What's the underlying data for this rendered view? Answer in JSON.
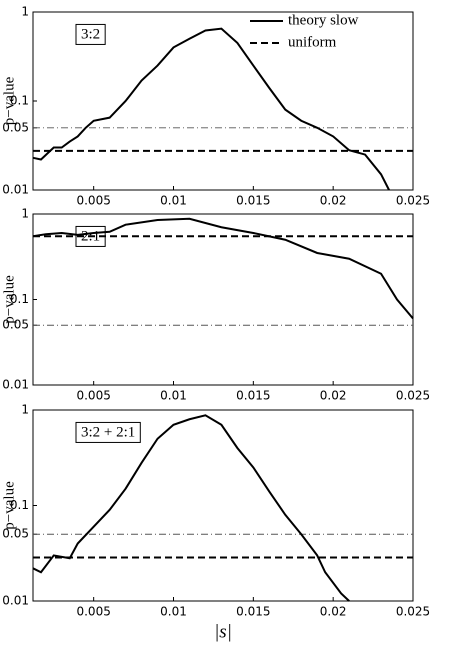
{
  "chart_data": [
    {
      "type": "line",
      "label": "3:2",
      "ylabel": "p−value",
      "ylog": true,
      "xlim": [
        0.0012,
        0.025
      ],
      "ylim": [
        0.01,
        1
      ],
      "xticks": [
        0.005,
        0.01,
        0.015,
        0.02,
        0.025
      ],
      "yticks": [
        0.01,
        0.05,
        0.1,
        1
      ],
      "legend": "upper right",
      "hlines": [
        {
          "value": 0.05,
          "style": "dashdot"
        }
      ],
      "x": [
        0.0012,
        0.0017,
        0.0025,
        0.003,
        0.0035,
        0.004,
        0.0045,
        0.005,
        0.006,
        0.007,
        0.008,
        0.009,
        0.01,
        0.011,
        0.012,
        0.013,
        0.014,
        0.015,
        0.016,
        0.017,
        0.018,
        0.019,
        0.02,
        0.021,
        0.022,
        0.023,
        0.0235
      ],
      "series": [
        {
          "name": "theory slow",
          "style": "solid",
          "color": "#000000",
          "values": [
            0.023,
            0.022,
            0.03,
            0.03,
            0.035,
            0.04,
            0.05,
            0.06,
            0.065,
            0.1,
            0.17,
            0.25,
            0.4,
            0.5,
            0.62,
            0.65,
            0.45,
            0.25,
            0.14,
            0.08,
            0.06,
            0.05,
            0.04,
            0.028,
            0.025,
            0.015,
            0.01
          ]
        },
        {
          "name": "uniform",
          "style": "dashed",
          "color": "#000000",
          "level": 0.0275
        }
      ]
    },
    {
      "type": "line",
      "label": "2:1",
      "ylabel": "p−value",
      "ylog": true,
      "xlim": [
        0.0012,
        0.025
      ],
      "ylim": [
        0.01,
        1
      ],
      "xticks": [
        0.005,
        0.01,
        0.015,
        0.02,
        0.025
      ],
      "yticks": [
        0.01,
        0.05,
        0.1,
        1
      ],
      "hlines": [
        {
          "value": 0.05,
          "style": "dashdot"
        }
      ],
      "x": [
        0.0012,
        0.002,
        0.003,
        0.004,
        0.005,
        0.006,
        0.007,
        0.009,
        0.011,
        0.013,
        0.015,
        0.017,
        0.019,
        0.021,
        0.023,
        0.024,
        0.025
      ],
      "series": [
        {
          "style": "solid",
          "color": "#000000",
          "values": [
            0.55,
            0.58,
            0.6,
            0.57,
            0.6,
            0.62,
            0.75,
            0.85,
            0.88,
            0.7,
            0.6,
            0.5,
            0.35,
            0.3,
            0.2,
            0.1,
            0.06
          ]
        },
        {
          "style": "dashed",
          "color": "#000000",
          "level": 0.55
        }
      ]
    },
    {
      "type": "line",
      "label": "3:2 + 2:1",
      "ylabel": "p−value",
      "xlabel": "|s|",
      "ylog": true,
      "xlim": [
        0.0012,
        0.025
      ],
      "ylim": [
        0.01,
        1
      ],
      "xticks": [
        0.005,
        0.01,
        0.015,
        0.02,
        0.025
      ],
      "yticks": [
        0.01,
        0.05,
        0.1,
        1
      ],
      "hlines": [
        {
          "value": 0.05,
          "style": "dashdot"
        }
      ],
      "x": [
        0.0012,
        0.0017,
        0.0025,
        0.0035,
        0.004,
        0.005,
        0.006,
        0.007,
        0.008,
        0.009,
        0.01,
        0.011,
        0.012,
        0.013,
        0.014,
        0.015,
        0.016,
        0.017,
        0.018,
        0.019,
        0.0195,
        0.0205,
        0.021
      ],
      "series": [
        {
          "style": "solid",
          "color": "#000000",
          "values": [
            0.022,
            0.02,
            0.03,
            0.028,
            0.04,
            0.06,
            0.09,
            0.15,
            0.28,
            0.5,
            0.7,
            0.8,
            0.88,
            0.7,
            0.4,
            0.25,
            0.14,
            0.08,
            0.05,
            0.03,
            0.02,
            0.012,
            0.01
          ]
        },
        {
          "style": "dashed",
          "color": "#000000",
          "level": 0.0285
        }
      ]
    }
  ]
}
